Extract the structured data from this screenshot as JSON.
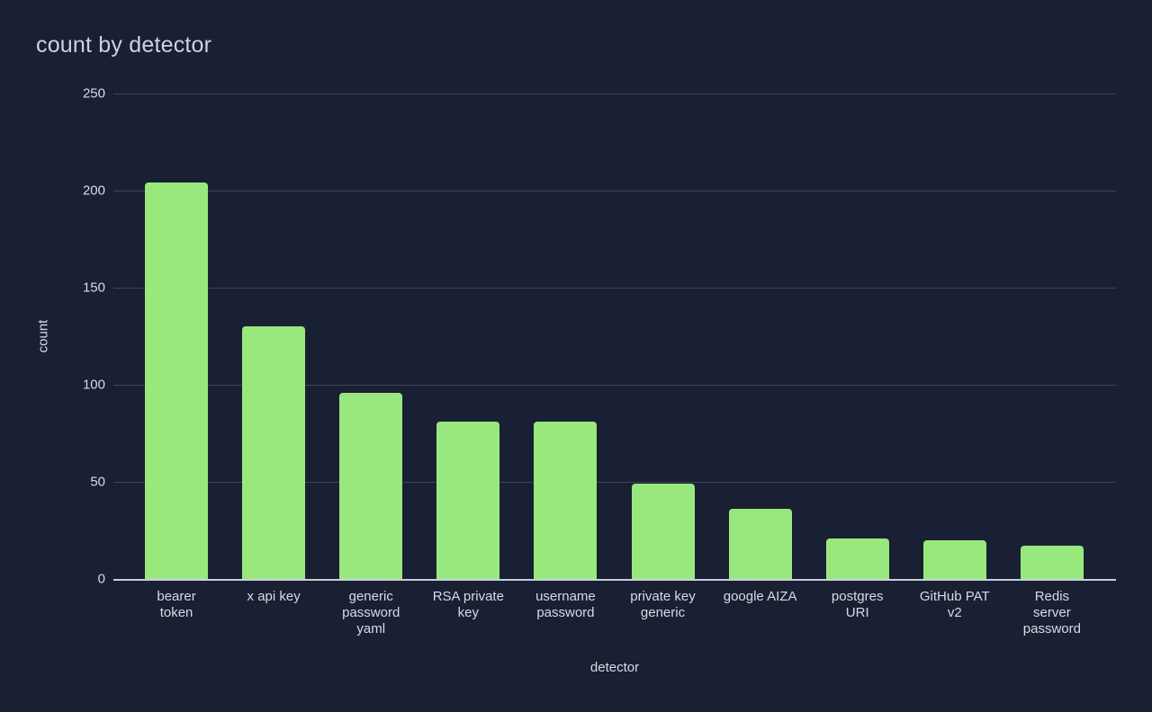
{
  "chart_data": {
    "type": "bar",
    "title": "count by detector",
    "xlabel": "detector",
    "ylabel": "count",
    "categories": [
      "bearer token",
      "x api key",
      "generic password yaml",
      "RSA private key",
      "username password",
      "private key generic",
      "google AIZA",
      "postgres URI",
      "GitHub PAT v2",
      "Redis server password"
    ],
    "label_lines": [
      [
        "bearer",
        "token"
      ],
      [
        "x api key"
      ],
      [
        "generic",
        "password",
        "yaml"
      ],
      [
        "RSA private",
        "key"
      ],
      [
        "username",
        "password"
      ],
      [
        "private key",
        "generic"
      ],
      [
        "google AIZA"
      ],
      [
        "postgres",
        "URI"
      ],
      [
        "GitHub PAT",
        "v2"
      ],
      [
        "Redis",
        "server",
        "password"
      ]
    ],
    "values": [
      204,
      130,
      96,
      81,
      81,
      49,
      36,
      21,
      20,
      17
    ],
    "yticks": [
      0,
      50,
      100,
      150,
      200,
      250
    ],
    "ylim": [
      0,
      250
    ],
    "grid": true,
    "legend_position": "none",
    "colors": {
      "background": "#1a2033",
      "bar": "#99e87d",
      "gridline": "#3c445c",
      "axis_line": "#c9cedb",
      "text": "#d5dbe6",
      "title": "#ccd3e0"
    }
  }
}
